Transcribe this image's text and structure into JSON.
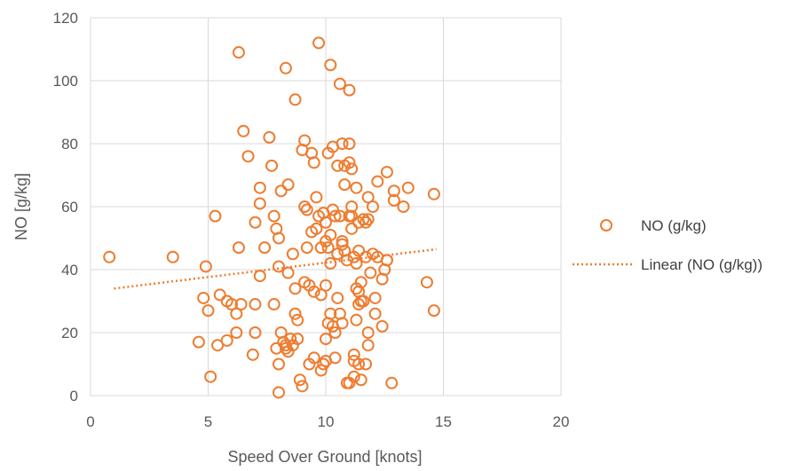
{
  "colors": {
    "series": "#ED7D31",
    "grid": "#D9D9D9",
    "text": "#595959"
  },
  "chart_data": {
    "type": "scatter",
    "xlabel": "Speed Over Ground [knots]",
    "ylabel": "NO [g/kg]",
    "xlim": [
      0,
      20
    ],
    "ylim": [
      0,
      120
    ],
    "x_ticks": [
      "0",
      "5",
      "10",
      "15",
      "20"
    ],
    "y_ticks": [
      "0",
      "20",
      "40",
      "60",
      "80",
      "100",
      "120"
    ],
    "grid": "vertical and horizontal major gridlines",
    "legend_position": "right",
    "series": [
      {
        "name": "NO (g/kg)",
        "marker": "open-circle",
        "points": [
          [
            0.8,
            44
          ],
          [
            3.5,
            44
          ],
          [
            4.6,
            17
          ],
          [
            4.8,
            31
          ],
          [
            4.9,
            41
          ],
          [
            5.0,
            27
          ],
          [
            5.1,
            6
          ],
          [
            5.3,
            57
          ],
          [
            5.4,
            16
          ],
          [
            5.5,
            32
          ],
          [
            5.8,
            17.5
          ],
          [
            5.8,
            30
          ],
          [
            6.0,
            29
          ],
          [
            6.2,
            20
          ],
          [
            6.2,
            26
          ],
          [
            6.3,
            47
          ],
          [
            6.3,
            109
          ],
          [
            6.4,
            29
          ],
          [
            6.5,
            84
          ],
          [
            6.7,
            76
          ],
          [
            6.9,
            13
          ],
          [
            7.0,
            29
          ],
          [
            7.0,
            55
          ],
          [
            7.0,
            20
          ],
          [
            7.2,
            38
          ],
          [
            7.2,
            66
          ],
          [
            7.2,
            61
          ],
          [
            7.4,
            47
          ],
          [
            7.6,
            82
          ],
          [
            7.7,
            73
          ],
          [
            7.8,
            57
          ],
          [
            7.8,
            29
          ],
          [
            7.9,
            53
          ],
          [
            7.9,
            15
          ],
          [
            8.0,
            10
          ],
          [
            8.0,
            1
          ],
          [
            8.0,
            41
          ],
          [
            8.0,
            50
          ],
          [
            8.1,
            65
          ],
          [
            8.1,
            20
          ],
          [
            8.2,
            17
          ],
          [
            8.3,
            104
          ],
          [
            8.3,
            15
          ],
          [
            8.3,
            16
          ],
          [
            8.4,
            14
          ],
          [
            8.4,
            67
          ],
          [
            8.4,
            39
          ],
          [
            8.5,
            18
          ],
          [
            8.6,
            16
          ],
          [
            8.6,
            45
          ],
          [
            8.7,
            94
          ],
          [
            8.7,
            26
          ],
          [
            8.7,
            34
          ],
          [
            8.8,
            18
          ],
          [
            8.8,
            24
          ],
          [
            8.9,
            5
          ],
          [
            9.0,
            3
          ],
          [
            9.0,
            78
          ],
          [
            9.1,
            81
          ],
          [
            9.1,
            60
          ],
          [
            9.1,
            36
          ],
          [
            9.2,
            59
          ],
          [
            9.2,
            47
          ],
          [
            9.3,
            10
          ],
          [
            9.3,
            35
          ],
          [
            9.4,
            77
          ],
          [
            9.4,
            52
          ],
          [
            9.5,
            12
          ],
          [
            9.5,
            33
          ],
          [
            9.5,
            74
          ],
          [
            9.6,
            63
          ],
          [
            9.6,
            53
          ],
          [
            9.7,
            57
          ],
          [
            9.7,
            112
          ],
          [
            9.8,
            32
          ],
          [
            9.8,
            47
          ],
          [
            9.8,
            8
          ],
          [
            9.9,
            10
          ],
          [
            9.9,
            58
          ],
          [
            10.0,
            11
          ],
          [
            10.0,
            49
          ],
          [
            10.0,
            35
          ],
          [
            10.0,
            55
          ],
          [
            10.0,
            18
          ],
          [
            10.1,
            77
          ],
          [
            10.1,
            47
          ],
          [
            10.1,
            23
          ],
          [
            10.2,
            26
          ],
          [
            10.2,
            105
          ],
          [
            10.2,
            42
          ],
          [
            10.2,
            51
          ],
          [
            10.3,
            79
          ],
          [
            10.3,
            59
          ],
          [
            10.3,
            22
          ],
          [
            10.4,
            57
          ],
          [
            10.4,
            20
          ],
          [
            10.4,
            12
          ],
          [
            10.5,
            45
          ],
          [
            10.5,
            73
          ],
          [
            10.5,
            31
          ],
          [
            10.6,
            99
          ],
          [
            10.6,
            57
          ],
          [
            10.6,
            26
          ],
          [
            10.7,
            80
          ],
          [
            10.7,
            49
          ],
          [
            10.7,
            23
          ],
          [
            10.7,
            48
          ],
          [
            10.8,
            67
          ],
          [
            10.8,
            46
          ],
          [
            10.8,
            73
          ],
          [
            10.9,
            4
          ],
          [
            10.9,
            43
          ],
          [
            11.0,
            80
          ],
          [
            11.0,
            4
          ],
          [
            11.0,
            74
          ],
          [
            11.0,
            97
          ],
          [
            11.0,
            57
          ],
          [
            11.1,
            57
          ],
          [
            11.1,
            60
          ],
          [
            11.1,
            72
          ],
          [
            11.1,
            53
          ],
          [
            11.2,
            11
          ],
          [
            11.2,
            13
          ],
          [
            11.2,
            6
          ],
          [
            11.2,
            44
          ],
          [
            11.3,
            42
          ],
          [
            11.3,
            24
          ],
          [
            11.3,
            34
          ],
          [
            11.3,
            66
          ],
          [
            11.4,
            10
          ],
          [
            11.4,
            29
          ],
          [
            11.4,
            55
          ],
          [
            11.4,
            33
          ],
          [
            11.4,
            46
          ],
          [
            11.5,
            5
          ],
          [
            11.5,
            36
          ],
          [
            11.5,
            30
          ],
          [
            11.6,
            30
          ],
          [
            11.6,
            56
          ],
          [
            11.7,
            10
          ],
          [
            11.7,
            55
          ],
          [
            11.7,
            44
          ],
          [
            11.8,
            20
          ],
          [
            11.8,
            16
          ],
          [
            11.8,
            63
          ],
          [
            11.8,
            56
          ],
          [
            11.9,
            39
          ],
          [
            12.0,
            45
          ],
          [
            12.0,
            60
          ],
          [
            12.1,
            26
          ],
          [
            12.1,
            31
          ],
          [
            12.2,
            44
          ],
          [
            12.2,
            68
          ],
          [
            12.4,
            22
          ],
          [
            12.4,
            37
          ],
          [
            12.5,
            40
          ],
          [
            12.6,
            71
          ],
          [
            12.6,
            43
          ],
          [
            12.6,
            43
          ],
          [
            12.8,
            4
          ],
          [
            12.9,
            62
          ],
          [
            12.9,
            65
          ],
          [
            13.3,
            60
          ],
          [
            13.5,
            66
          ],
          [
            14.3,
            36
          ],
          [
            14.6,
            27
          ],
          [
            14.6,
            64
          ]
        ]
      },
      {
        "name": "Linear (NO (g/kg))",
        "type": "trendline",
        "x": [
          1,
          14.7
        ],
        "y": [
          34,
          46.5
        ]
      }
    ]
  }
}
